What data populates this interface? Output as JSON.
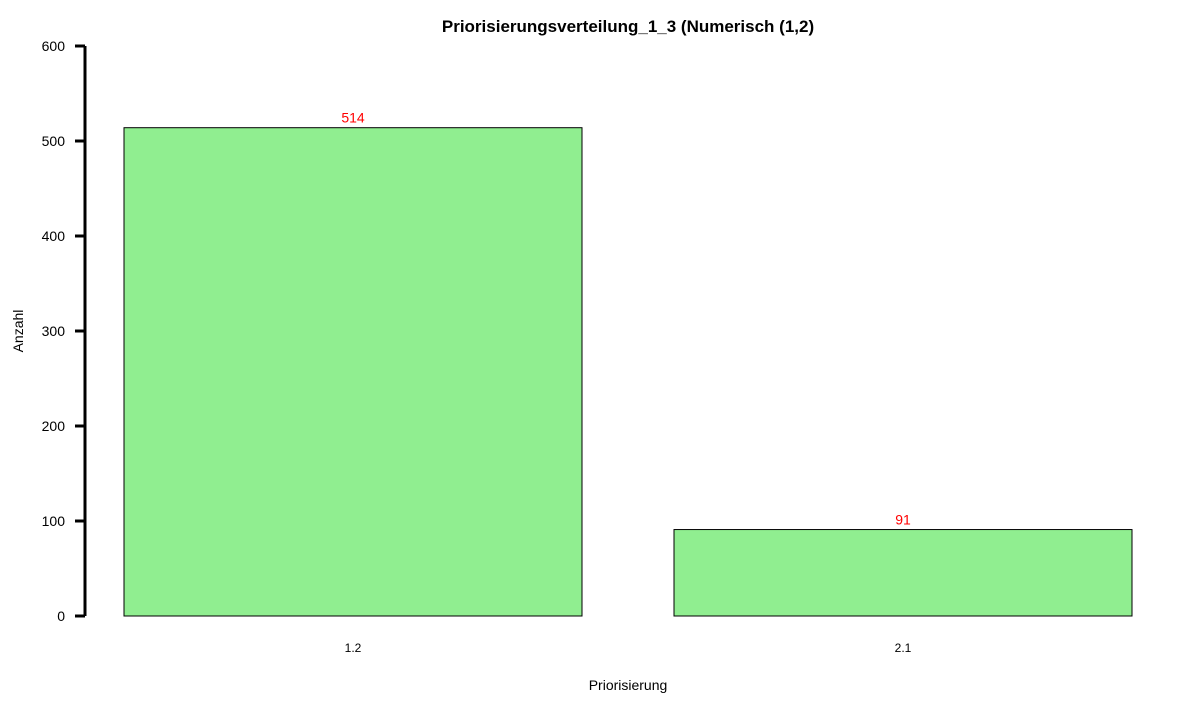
{
  "chart_data": {
    "type": "bar",
    "title": "Priorisierungsverteilung_1_3 (Numerisch (1,2)",
    "xlabel": "Priorisierung",
    "ylabel": "Anzahl",
    "categories": [
      "1.2",
      "2.1"
    ],
    "values": [
      514,
      91
    ],
    "data_labels": [
      "514",
      "91"
    ],
    "ylim": [
      0,
      600
    ],
    "y_ticks": [
      0,
      100,
      200,
      300,
      400,
      500,
      600
    ],
    "y_tick_labels": [
      "0",
      "100",
      "200",
      "300",
      "400",
      "500",
      "600"
    ],
    "grid": false,
    "legend": "none",
    "colors": {
      "bar_fill": "#90EE90",
      "bar_stroke": "#000000",
      "data_label": "#FF0000",
      "axis": "#000000"
    }
  }
}
